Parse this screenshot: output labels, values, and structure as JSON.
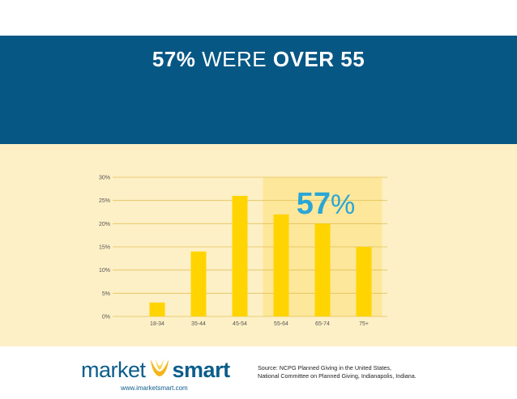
{
  "headline": {
    "number": "57%",
    "middle": "WERE",
    "emphasis": "OVER 55"
  },
  "chart_data": {
    "type": "bar",
    "categories": [
      "18-34",
      "35-44",
      "45-54",
      "55-64",
      "65-74",
      "75+"
    ],
    "values": [
      3,
      14,
      26,
      22,
      20,
      15
    ],
    "ylim": [
      0,
      30
    ],
    "yticks": [
      "0%",
      "5%",
      "10%",
      "15%",
      "20%",
      "25%",
      "30%"
    ],
    "highlight": {
      "categories": [
        "55-64",
        "65-74",
        "75+"
      ],
      "label_number": "57",
      "label_symbol": "%"
    },
    "grid": true,
    "colors": {
      "bar": "#ffd400",
      "highlight_band": "#fde79a",
      "panel": "#fdf0c6",
      "highlight_text": "#2aa6d6"
    }
  },
  "footer": {
    "logo": {
      "left": "market",
      "right": "smart"
    },
    "website": "www.imarketsmart.com",
    "source_line1": "Source: NCPG Planned Giving in the United States,",
    "source_line2": "National Committee on Planned Giving, Indianapolis, Indiana."
  },
  "colors": {
    "banner": "#075785",
    "brand": "#0c5d8b"
  }
}
